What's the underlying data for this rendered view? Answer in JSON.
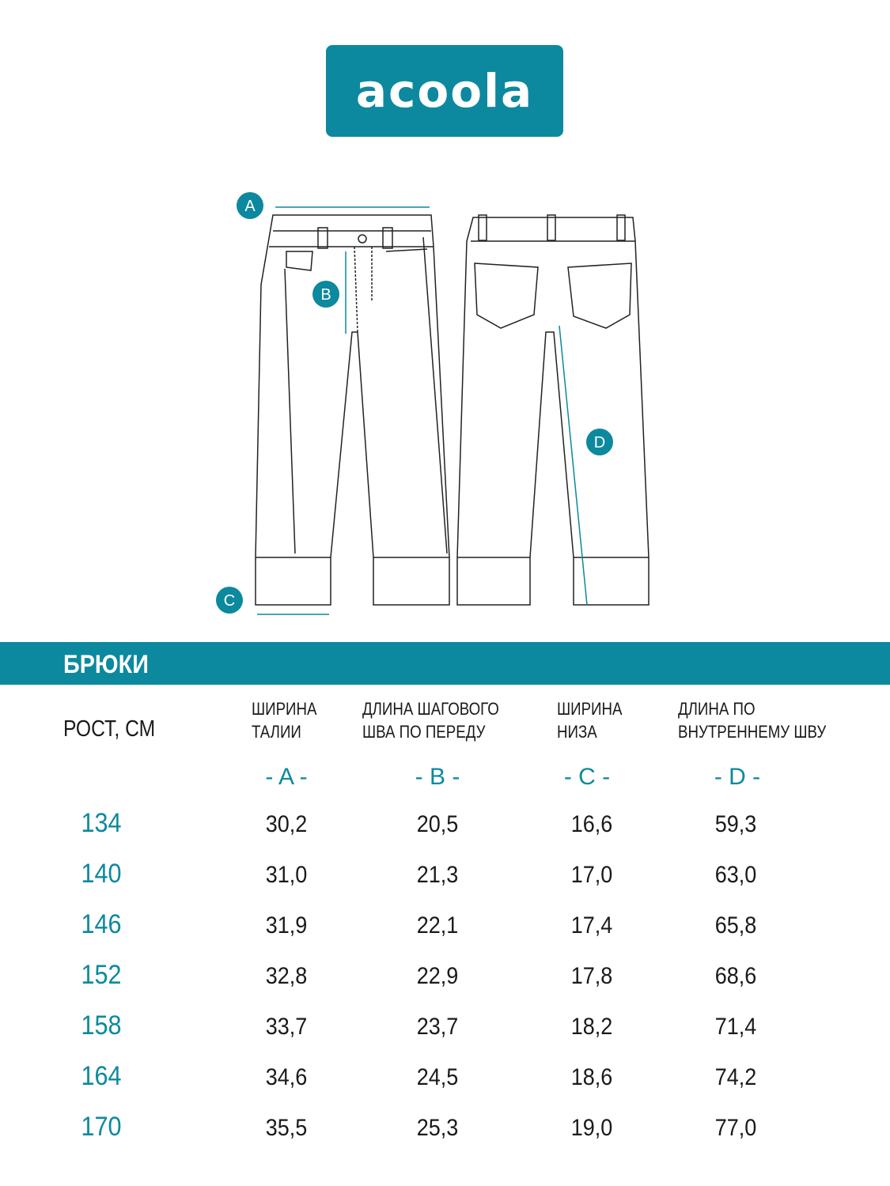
{
  "logo": {
    "text": "acoola"
  },
  "accent_color": "#0c899e",
  "drawing": {
    "markers": [
      "A",
      "B",
      "C",
      "D"
    ]
  },
  "section_title": "БРЮКИ",
  "table": {
    "height_header": "РОСТ, СМ",
    "columns": [
      {
        "line1": "ШИРИНА",
        "line2": "ТАЛИИ",
        "letter": "- A -"
      },
      {
        "line1": "ДЛИНА ШАГОВОГО",
        "line2": "ШВА ПО ПЕРЕДУ",
        "letter": "- B -"
      },
      {
        "line1": "ШИРИНА",
        "line2": "НИЗА",
        "letter": "- C -"
      },
      {
        "line1": "ДЛИНА ПО",
        "line2": "ВНУТРЕННЕМУ ШВУ",
        "letter": "- D -"
      }
    ],
    "rows": [
      {
        "height": "134",
        "values": [
          "30,2",
          "20,5",
          "16,6",
          "59,3"
        ]
      },
      {
        "height": "140",
        "values": [
          "31,0",
          "21,3",
          "17,0",
          "63,0"
        ]
      },
      {
        "height": "146",
        "values": [
          "31,9",
          "22,1",
          "17,4",
          "65,8"
        ]
      },
      {
        "height": "152",
        "values": [
          "32,8",
          "22,9",
          "17,8",
          "68,6"
        ]
      },
      {
        "height": "158",
        "values": [
          "33,7",
          "23,7",
          "18,2",
          "71,4"
        ]
      },
      {
        "height": "164",
        "values": [
          "34,6",
          "24,5",
          "18,6",
          "74,2"
        ]
      },
      {
        "height": "170",
        "values": [
          "35,5",
          "25,3",
          "19,0",
          "77,0"
        ]
      }
    ]
  }
}
